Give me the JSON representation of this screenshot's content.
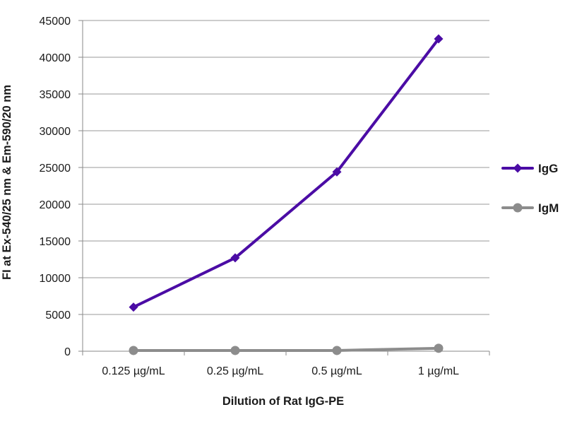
{
  "chart_data": {
    "type": "line",
    "categories": [
      "0.125 µg/mL",
      "0.25 µg/mL",
      "0.5 µg/mL",
      "1 µg/mL"
    ],
    "series": [
      {
        "name": "IgG",
        "values": [
          6000,
          12700,
          24400,
          42500
        ],
        "color": "#4b0ca5",
        "marker": "diamond"
      },
      {
        "name": "IgM",
        "values": [
          100,
          100,
          100,
          400
        ],
        "color": "#8c8c8c",
        "marker": "circle"
      }
    ],
    "xlabel": "Dilution of Rat IgG-PE",
    "ylabel": "FI at Ex-540/25 nm & Em-590/20 nm",
    "ylim": [
      0,
      45000
    ],
    "yticks": [
      0,
      5000,
      10000,
      15000,
      20000,
      25000,
      30000,
      35000,
      40000,
      45000
    ],
    "grid": true,
    "legend": "right"
  }
}
